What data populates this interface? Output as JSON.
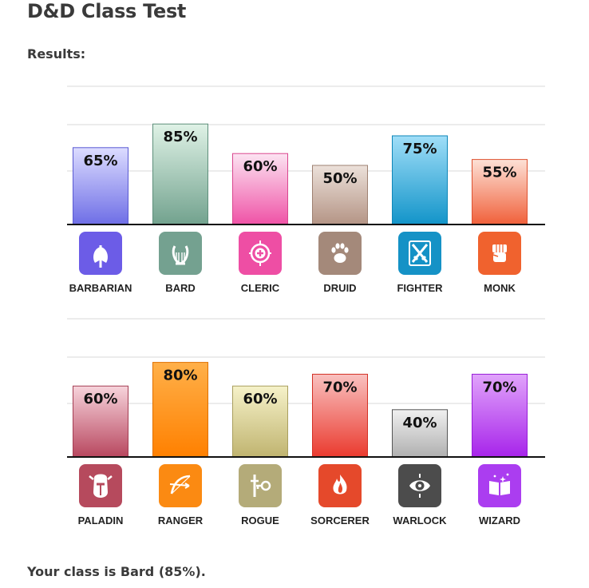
{
  "page": {
    "title": "D&D Class Test",
    "results_label": "Results:",
    "result_text": "Your class is Bard (85%)."
  },
  "chart_data": [
    {
      "type": "bar",
      "categories": [
        "BARBARIAN",
        "BARD",
        "CLERIC",
        "DRUID",
        "FIGHTER",
        "MONK"
      ],
      "values": [
        65,
        85,
        60,
        50,
        75,
        55
      ],
      "data_labels": [
        "65%",
        "85%",
        "60%",
        "50%",
        "75%",
        "55%"
      ],
      "icons": [
        "barbarian-axe-icon",
        "bard-lyre-icon",
        "cleric-holy-symbol-icon",
        "druid-paw-icon",
        "fighter-crossed-swords-icon",
        "monk-fist-icon"
      ],
      "colors": [
        {
          "top": "#dcdcff",
          "bottom": "#6e6ee6",
          "border": "#5a5ad2",
          "icon": "#6c5ce7"
        },
        {
          "top": "#dff2e6",
          "bottom": "#72a28e",
          "border": "#5e8f7b",
          "icon": "#74a190"
        },
        {
          "top": "#fce4f2",
          "bottom": "#ef52a6",
          "border": "#d9478f",
          "icon": "#ee4ea4"
        },
        {
          "top": "#ece1da",
          "bottom": "#b49485",
          "border": "#9e8172",
          "icon": "#a4897a"
        },
        {
          "top": "#a0def8",
          "bottom": "#1294c9",
          "border": "#0e86b8",
          "icon": "#1592c6"
        },
        {
          "top": "#fde1d6",
          "bottom": "#f0603a",
          "border": "#de5230",
          "icon": "#f0622e"
        }
      ],
      "ylim": [
        0,
        100
      ],
      "grid": true
    },
    {
      "type": "bar",
      "categories": [
        "PALADIN",
        "RANGER",
        "ROGUE",
        "SORCERER",
        "WARLOCK",
        "WIZARD"
      ],
      "values": [
        60,
        80,
        60,
        70,
        40,
        70
      ],
      "data_labels": [
        "60%",
        "80%",
        "60%",
        "70%",
        "40%",
        "70%"
      ],
      "icons": [
        "paladin-helmet-icon",
        "ranger-bow-icon",
        "rogue-key-dagger-icon",
        "sorcerer-flame-icon",
        "warlock-eye-icon",
        "wizard-spellbook-icon"
      ],
      "colors": [
        {
          "top": "#f7d4dc",
          "bottom": "#b8475f",
          "border": "#a43d53",
          "icon": "#b64a5d"
        },
        {
          "top": "#ffb049",
          "bottom": "#ff8000",
          "border": "#e07000",
          "icon": "#fb8a12"
        },
        {
          "top": "#f6f2c9",
          "bottom": "#c0b470",
          "border": "#a99e5e",
          "icon": "#b4ab79"
        },
        {
          "top": "#f9c1c0",
          "bottom": "#ea3a2e",
          "border": "#d33024",
          "icon": "#e5492b"
        },
        {
          "top": "#f0f0f0",
          "bottom": "#b0b0b0",
          "border": "#555555",
          "icon": "#4c4c4c"
        },
        {
          "top": "#e1a4fb",
          "bottom": "#a724ea",
          "border": "#961cd7",
          "icon": "#ab3df0"
        }
      ],
      "ylim": [
        0,
        100
      ],
      "grid": true
    }
  ]
}
